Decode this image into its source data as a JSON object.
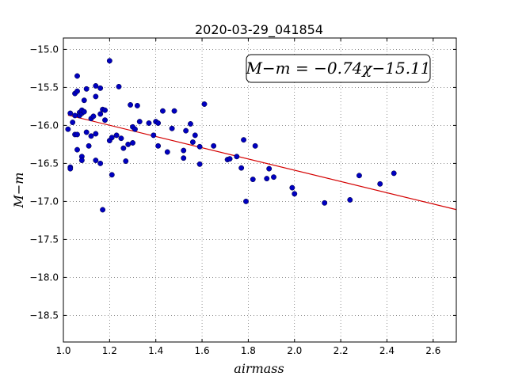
{
  "chart_data": {
    "type": "scatter",
    "title": "2020-03-29_041854",
    "xlabel": "airmass",
    "ylabel": "M−m",
    "xlim": [
      1.0,
      2.7
    ],
    "ylim": [
      -18.85,
      -14.85
    ],
    "y_inverted": true,
    "x_ticks": [
      1.0,
      1.2,
      1.4,
      1.6,
      1.8,
      2.0,
      2.2,
      2.4,
      2.6
    ],
    "x_tick_labels": [
      "1.0",
      "1.2",
      "1.4",
      "1.6",
      "1.8",
      "2.0",
      "2.2",
      "2.4",
      "2.6"
    ],
    "y_ticks": [
      -15.0,
      -15.5,
      -16.0,
      -16.5,
      -17.0,
      -17.5,
      -18.0,
      -18.5
    ],
    "y_tick_labels": [
      "−15.0",
      "−15.5",
      "−16.0",
      "−16.5",
      "−17.0",
      "−17.5",
      "−18.0",
      "−18.5"
    ],
    "grid": true,
    "fit_annotation": "M−m = −0.74χ−15.11",
    "fit": {
      "slope": -0.74,
      "intercept": -15.11,
      "color": "#d40000"
    },
    "marker_color": "#0000c0",
    "points": [
      [
        1.02,
        -16.05
      ],
      [
        1.03,
        -15.84
      ],
      [
        1.03,
        -16.55
      ],
      [
        1.03,
        -16.57
      ],
      [
        1.04,
        -15.96
      ],
      [
        1.05,
        -15.87
      ],
      [
        1.05,
        -16.12
      ],
      [
        1.05,
        -15.58
      ],
      [
        1.06,
        -16.32
      ],
      [
        1.06,
        -16.12
      ],
      [
        1.06,
        -15.55
      ],
      [
        1.06,
        -15.35
      ],
      [
        1.07,
        -15.83
      ],
      [
        1.07,
        -15.87
      ],
      [
        1.08,
        -15.84
      ],
      [
        1.08,
        -15.8
      ],
      [
        1.08,
        -16.41
      ],
      [
        1.08,
        -16.46
      ],
      [
        1.09,
        -15.67
      ],
      [
        1.09,
        -15.82
      ],
      [
        1.1,
        -16.09
      ],
      [
        1.1,
        -15.52
      ],
      [
        1.11,
        -16.27
      ],
      [
        1.12,
        -15.91
      ],
      [
        1.12,
        -16.14
      ],
      [
        1.13,
        -15.88
      ],
      [
        1.14,
        -16.11
      ],
      [
        1.14,
        -15.48
      ],
      [
        1.14,
        -15.62
      ],
      [
        1.14,
        -16.46
      ],
      [
        1.16,
        -15.85
      ],
      [
        1.16,
        -15.51
      ],
      [
        1.16,
        -16.5
      ],
      [
        1.17,
        -17.11
      ],
      [
        1.17,
        -15.79
      ],
      [
        1.18,
        -15.93
      ],
      [
        1.18,
        -15.8
      ],
      [
        1.2,
        -15.15
      ],
      [
        1.2,
        -16.2
      ],
      [
        1.21,
        -16.16
      ],
      [
        1.21,
        -16.65
      ],
      [
        1.23,
        -16.13
      ],
      [
        1.24,
        -15.49
      ],
      [
        1.25,
        -16.17
      ],
      [
        1.26,
        -16.3
      ],
      [
        1.27,
        -16.47
      ],
      [
        1.28,
        -16.25
      ],
      [
        1.29,
        -15.73
      ],
      [
        1.3,
        -16.23
      ],
      [
        1.3,
        -16.02
      ],
      [
        1.31,
        -16.05
      ],
      [
        1.32,
        -15.74
      ],
      [
        1.33,
        -15.95
      ],
      [
        1.37,
        -15.97
      ],
      [
        1.39,
        -16.13
      ],
      [
        1.4,
        -15.95
      ],
      [
        1.41,
        -15.97
      ],
      [
        1.41,
        -16.27
      ],
      [
        1.43,
        -15.81
      ],
      [
        1.45,
        -16.35
      ],
      [
        1.47,
        -16.04
      ],
      [
        1.48,
        -15.81
      ],
      [
        1.52,
        -16.43
      ],
      [
        1.52,
        -16.33
      ],
      [
        1.53,
        -16.07
      ],
      [
        1.55,
        -15.98
      ],
      [
        1.56,
        -16.22
      ],
      [
        1.57,
        -16.13
      ],
      [
        1.59,
        -16.51
      ],
      [
        1.59,
        -16.28
      ],
      [
        1.61,
        -15.72
      ],
      [
        1.65,
        -16.27
      ],
      [
        1.71,
        -16.45
      ],
      [
        1.72,
        -16.44
      ],
      [
        1.75,
        -16.41
      ],
      [
        1.77,
        -16.56
      ],
      [
        1.78,
        -16.19
      ],
      [
        1.79,
        -17.0
      ],
      [
        1.82,
        -16.71
      ],
      [
        1.83,
        -16.27
      ],
      [
        1.88,
        -16.7
      ],
      [
        1.89,
        -16.57
      ],
      [
        1.91,
        -16.68
      ],
      [
        1.99,
        -16.82
      ],
      [
        2.0,
        -16.9
      ],
      [
        2.13,
        -17.02
      ],
      [
        2.24,
        -16.98
      ],
      [
        2.28,
        -16.66
      ],
      [
        2.37,
        -16.77
      ],
      [
        2.43,
        -16.63
      ]
    ]
  }
}
